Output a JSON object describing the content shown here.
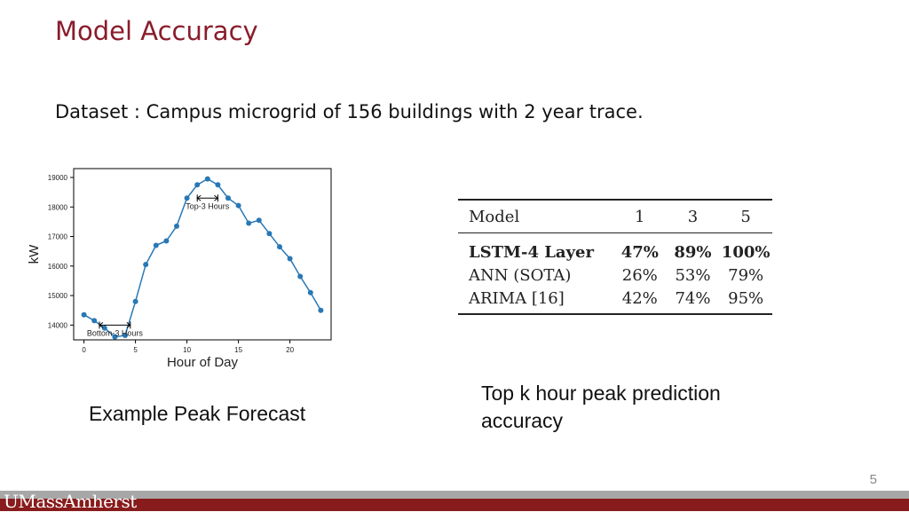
{
  "slide": {
    "title": "Model Accuracy",
    "subtitle": "Dataset : Campus microgrid of 156 buildings with 2 year trace.",
    "caption_left": "Example Peak Forecast",
    "caption_right": "Top k hour peak prediction accuracy",
    "page_number": "5",
    "footer_logo": "UMassAmherst"
  },
  "table": {
    "headers": [
      "Model",
      "1",
      "3",
      "5"
    ],
    "rows": [
      {
        "model": "LSTM-4 Layer",
        "k1": "47%",
        "k3": "89%",
        "k5": "100%"
      },
      {
        "model": "ANN (SOTA)",
        "k1": "26%",
        "k3": "53%",
        "k5": "79%"
      },
      {
        "model": "ARIMA [16]",
        "k1": "42%",
        "k3": "74%",
        "k5": "95%"
      }
    ]
  },
  "colors": {
    "title": "#8a1c2b",
    "line": "#2878b5",
    "footer_bar": "#881c1c",
    "footer_grey": "#a7a7a7"
  },
  "chart_data": {
    "type": "line",
    "xlabel": "Hour of Day",
    "ylabel": "kW",
    "xlim": [
      -1,
      24
    ],
    "ylim": [
      13500,
      19300
    ],
    "xticks": [
      0,
      5,
      10,
      15,
      20
    ],
    "yticks": [
      14000,
      15000,
      16000,
      17000,
      18000,
      19000
    ],
    "x": [
      0,
      1,
      2,
      3,
      4,
      5,
      6,
      7,
      8,
      9,
      10,
      11,
      12,
      13,
      14,
      15,
      16,
      17,
      18,
      19,
      20,
      21,
      22,
      23
    ],
    "y": [
      14350,
      14150,
      13900,
      13600,
      13650,
      14800,
      16050,
      16700,
      16850,
      17350,
      18300,
      18750,
      18950,
      18750,
      18300,
      18050,
      17450,
      17550,
      17100,
      16650,
      16250,
      15650,
      15100,
      14500
    ],
    "annotations": [
      {
        "text": "Top-3 Hours",
        "x_from": 11,
        "x_to": 13,
        "y": 18300
      },
      {
        "text": "Bottom-3 Hours",
        "x_from": 1.5,
        "x_to": 4.5,
        "y": 14000
      }
    ]
  }
}
